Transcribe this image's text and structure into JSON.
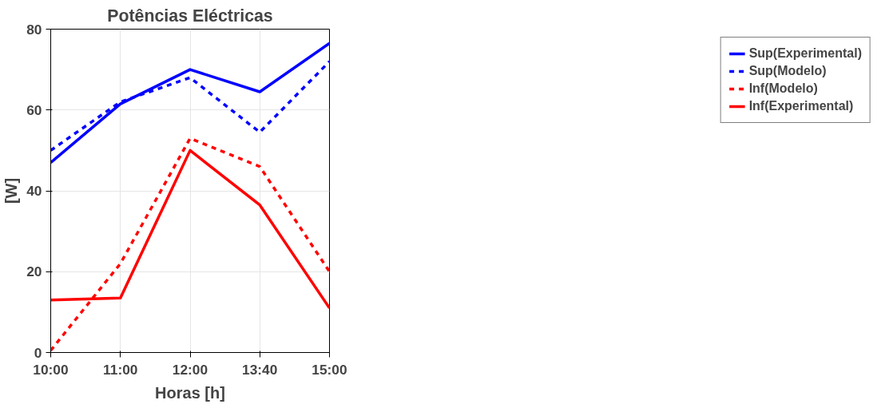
{
  "chart_data": {
    "type": "line",
    "title": "Potências Eléctricas",
    "xlabel": "Horas [h]",
    "ylabel": "[W]",
    "categories": [
      "10:00",
      "11:00",
      "12:00",
      "13:40",
      "15:00"
    ],
    "series": [
      {
        "name": "Sup(Experimental)",
        "color": "#0000ff",
        "line_style": "solid",
        "values": [
          47,
          61.5,
          70,
          64.5,
          76.5
        ]
      },
      {
        "name": "Sup(Modelo)",
        "color": "#0000ff",
        "line_style": "dashed",
        "values": [
          50,
          62,
          68,
          54.5,
          72
        ]
      },
      {
        "name": "Inf(Modelo)",
        "color": "#ff0000",
        "line_style": "dashed",
        "values": [
          0.5,
          22,
          53,
          46,
          20
        ]
      },
      {
        "name": "Inf(Experimental)",
        "color": "#ff0000",
        "line_style": "solid",
        "values": [
          13,
          13.5,
          50,
          36.5,
          11
        ]
      }
    ],
    "ylim": [
      0,
      80
    ],
    "yticks": [
      0,
      20,
      40,
      60,
      80
    ],
    "grid": true,
    "legend": "right",
    "marker": "none"
  }
}
